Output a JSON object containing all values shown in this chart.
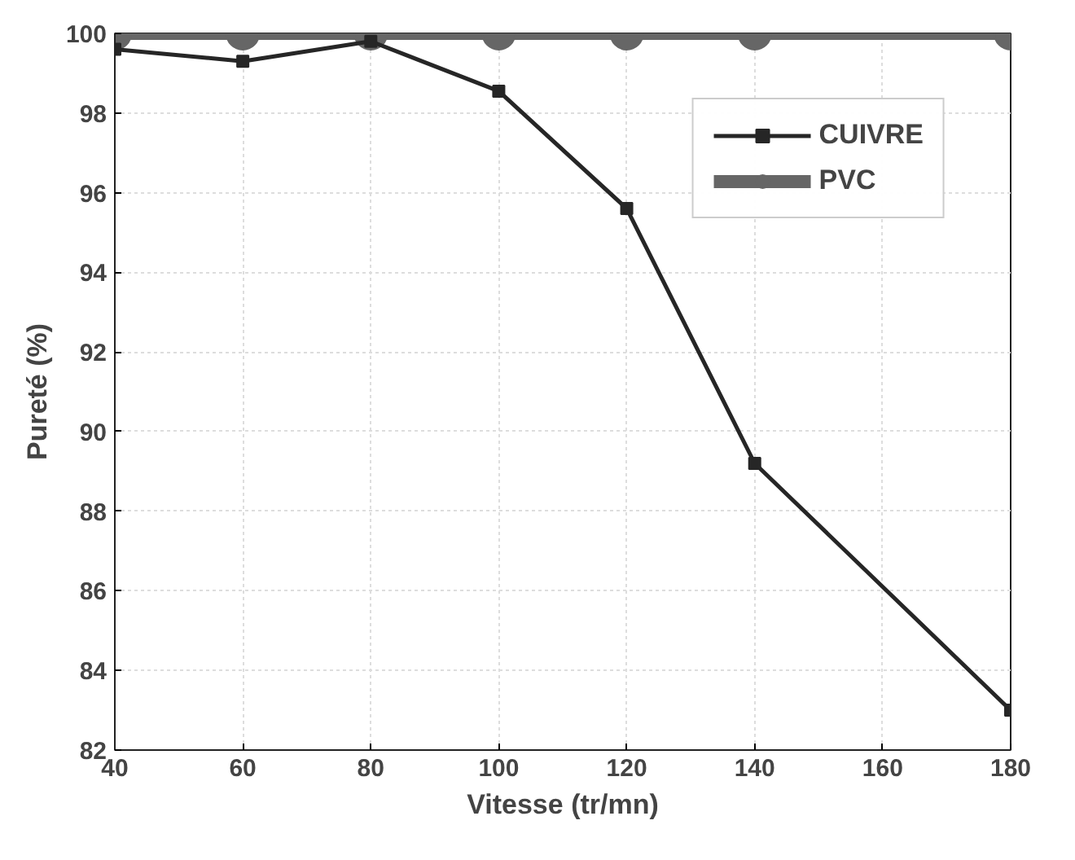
{
  "chart_data": {
    "type": "line",
    "xlabel": "Vitesse (tr/mn)",
    "ylabel": "Pureté (%)",
    "x": [
      40,
      60,
      80,
      100,
      120,
      140,
      180
    ],
    "series": [
      {
        "name": "CUIVRE",
        "color": "#262626",
        "marker": "square",
        "values": [
          99.6,
          99.3,
          99.8,
          98.55,
          95.6,
          89.2,
          83.0
        ]
      },
      {
        "name": "PVC",
        "color": "#666666",
        "marker": "circle",
        "values": [
          100,
          100,
          100,
          100,
          100,
          100,
          100
        ]
      }
    ],
    "xlim": [
      40,
      180
    ],
    "xticks": [
      40,
      60,
      80,
      100,
      120,
      140,
      160,
      180
    ],
    "ylim": [
      82,
      100
    ],
    "yticks": [
      82,
      84,
      86,
      88,
      90,
      92,
      94,
      96,
      98,
      100
    ],
    "grid": true,
    "legend": "top right",
    "line_style": "solid"
  }
}
